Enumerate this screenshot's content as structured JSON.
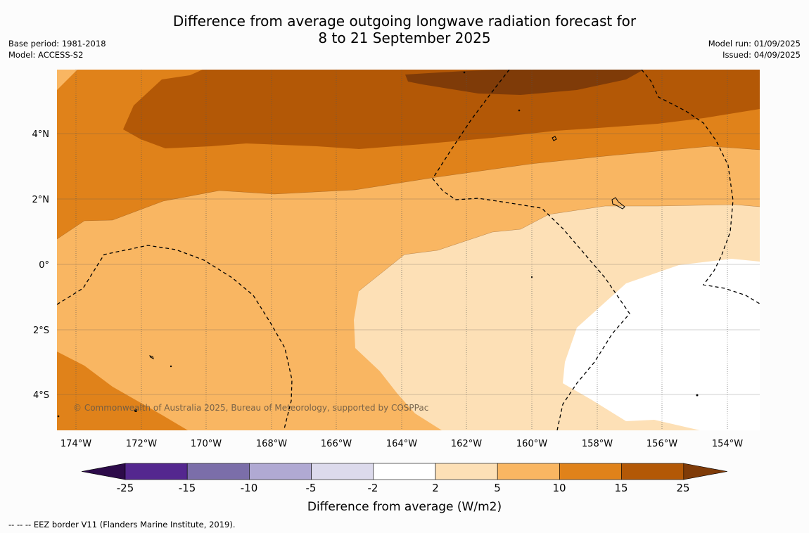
{
  "title": {
    "line1": "Difference from average outgoing longwave radiation forecast for",
    "line2": "8 to 21 September 2025"
  },
  "meta_left": {
    "base_period": "Base period: 1981-2018",
    "model": "Model: ACCESS-S2"
  },
  "meta_right": {
    "model_run": "Model run: 01/09/2025",
    "issued": "Issued: 04/09/2025"
  },
  "map": {
    "lon_labels": [
      "174°W",
      "172°W",
      "170°W",
      "168°W",
      "166°W",
      "164°W",
      "162°W",
      "160°W",
      "158°W",
      "156°W",
      "154°W"
    ],
    "lat_labels": [
      "4°N",
      "2°N",
      "0°",
      "2°S",
      "4°S"
    ],
    "copyright": "© Commonwealth of Australia 2025, Bureau of Meteorology, supported by COSPPac"
  },
  "colorbar": {
    "ticks": [
      "-25",
      "-15",
      "-10",
      "-5",
      "-2",
      "2",
      "5",
      "10",
      "15",
      "25"
    ],
    "label": "Difference from average (W/m2)",
    "colors": [
      "#2d0b4a",
      "#54278f",
      "#7b6ea9",
      "#b0a9d3",
      "#dcdaec",
      "#ffffff",
      "#fde0b6",
      "#f9b662",
      "#e0821a",
      "#b35806",
      "#7f3b08"
    ]
  },
  "footer": {
    "legend": "--  --  -- EEZ border V11 (Flanders Marine Institute, 2019)."
  }
}
